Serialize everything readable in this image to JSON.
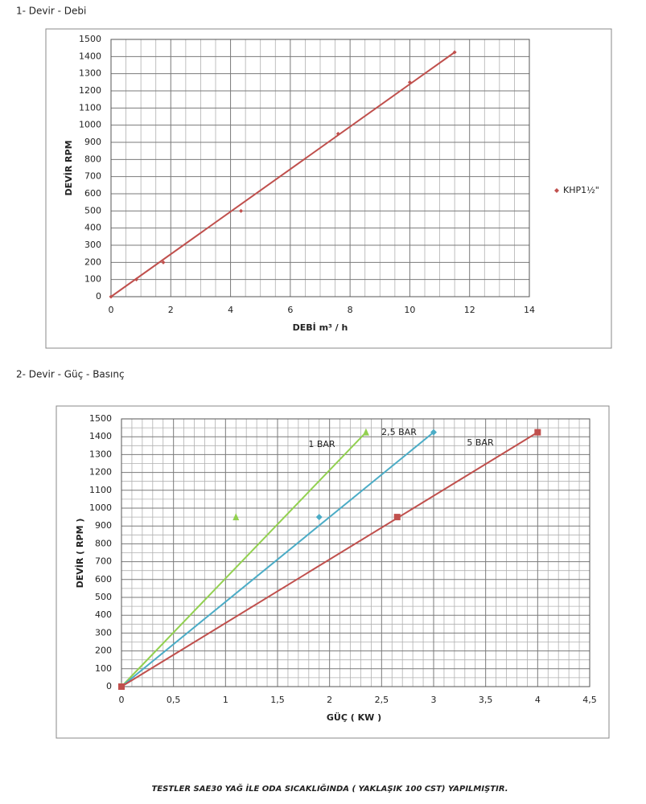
{
  "chart_data": [
    {
      "type": "scatter",
      "title": "1- Devir - Debi",
      "x_label": "DEBİ m³ / h",
      "y_label": "DEVİR RPM",
      "xlim": [
        0,
        14
      ],
      "xticks": [
        0,
        2,
        4,
        6,
        8,
        10,
        12,
        14
      ],
      "ylim": [
        0,
        1500
      ],
      "yticks": [
        0,
        100,
        200,
        300,
        400,
        500,
        600,
        700,
        800,
        900,
        1000,
        1100,
        1200,
        1300,
        1400,
        1500
      ],
      "grid": true,
      "legend": "right",
      "series": [
        {
          "name": "KHP1½\"",
          "color": "#c0504d",
          "marker": "diamond",
          "x": [
            0,
            0.85,
            1.75,
            4.35,
            7.6,
            10,
            11.5
          ],
          "values": [
            0,
            100,
            200,
            500,
            950,
            1250,
            1425
          ]
        }
      ]
    },
    {
      "type": "scatter",
      "title": "2- Devir - Güç - Basınç",
      "x_label": "GÜÇ ( KW )",
      "y_label": "DEVİR ( RPM )",
      "xlim": [
        0,
        4.5
      ],
      "xticks": [
        0,
        {
          "value": 0.5,
          "label": "0,5"
        },
        1,
        {
          "value": 1.5,
          "label": "1,5"
        },
        2,
        {
          "value": 2.5,
          "label": "2,5"
        },
        3,
        {
          "value": 3.5,
          "label": "3,5"
        },
        4,
        {
          "value": 4.5,
          "label": "4,5"
        }
      ],
      "ylim": [
        0,
        1500
      ],
      "yticks": [
        0,
        100,
        200,
        300,
        400,
        500,
        600,
        700,
        800,
        900,
        1000,
        1100,
        1200,
        1300,
        1400,
        1500
      ],
      "grid": true,
      "legend": "inline",
      "series": [
        {
          "name": "1 BAR",
          "color": "#92d050",
          "marker": "triangle",
          "x": [
            0,
            1.1,
            2.35
          ],
          "values": [
            0,
            950,
            1425
          ]
        },
        {
          "name": "2,5 BAR",
          "color": "#4bacc6",
          "marker": "diamond",
          "x": [
            0,
            1.9,
            3
          ],
          "values": [
            0,
            950,
            1425
          ]
        },
        {
          "name": "5 BAR",
          "color": "#c0504d",
          "marker": "square",
          "x": [
            0,
            2.65,
            4
          ],
          "values": [
            0,
            950,
            1425
          ]
        }
      ]
    }
  ],
  "footnote": "TESTLER SAE30 YAĞ İLE ODA SICAKLIĞINDA ( YAKLAŞIK 100 CST) YAPILMIŞTIR."
}
